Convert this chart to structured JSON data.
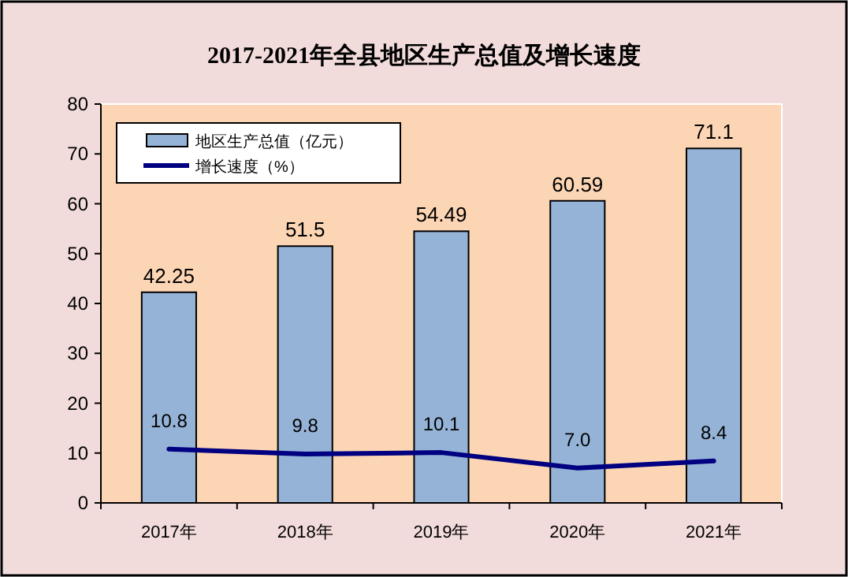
{
  "chart_data": {
    "type": "bar",
    "title": "2017-2021年全县地区生产总值及增长速度",
    "categories": [
      "2017年",
      "2018年",
      "2019年",
      "2020年",
      "2021年"
    ],
    "series": [
      {
        "name": "地区生产总值（亿元）",
        "color": "#95b3d7",
        "values": [
          42.25,
          51.5,
          54.49,
          60.59,
          71.1
        ],
        "value_labels": [
          "42.25",
          "51.5",
          "54.49",
          "60.59",
          "71.1"
        ]
      },
      {
        "name": "增长速度（%）",
        "type": "line",
        "color": "#000080",
        "values": [
          10.8,
          9.8,
          10.1,
          7.0,
          8.4
        ],
        "value_labels": [
          "10.8",
          "9.8",
          "10.1",
          "7.0",
          "8.4"
        ]
      }
    ],
    "ylim": [
      0,
      80
    ],
    "yticks": [
      0,
      10,
      20,
      30,
      40,
      50,
      60,
      70,
      80
    ],
    "grid": false,
    "legend": "top left",
    "marker": "none",
    "line_style": "solid"
  }
}
